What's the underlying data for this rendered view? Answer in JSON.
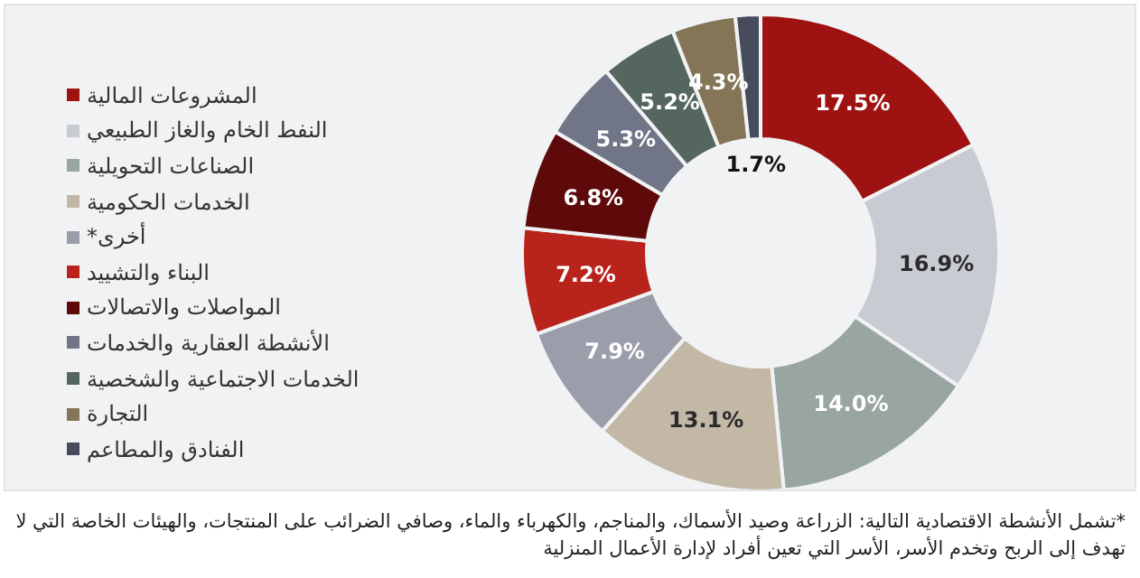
{
  "chart_data": {
    "type": "donut",
    "categories": [
      "المشروعات المالية",
      "النفط الخام والغاز الطبيعي",
      "الصناعات التحويلية",
      "الخدمات الحكومية",
      "أخرى*",
      "البناء والتشييد",
      "المواصلات والاتصالات",
      "الأنشطة العقارية والخدمات",
      "الخدمات الاجتماعية والشخصية",
      "التجارة",
      "الفنادق والمطاعم"
    ],
    "values": [
      17.5,
      16.9,
      14.0,
      13.1,
      7.9,
      7.2,
      6.8,
      5.3,
      5.2,
      4.3,
      1.7
    ],
    "colors": [
      "#9e1312",
      "#c8cbd1",
      "#98a5a1",
      "#c3b8a6",
      "#9b9eaa",
      "#b8241c",
      "#5e0a0a",
      "#707688",
      "#55665f",
      "#857557",
      "#474c5c"
    ],
    "value_labels": [
      "17.5%",
      "16.9%",
      "14.0%",
      "13.1%",
      "7.9%",
      "7.2%",
      "6.8%",
      "5.3%",
      "5.2%",
      "4.3%",
      "1.7%"
    ],
    "legend": "left",
    "annotations": [
      "*تشمل الأنشطة الاقتصادية التالية: الزراعة وصيد الأسماك، والمناجم، والكهرباء والماء، وصافي الضرائب على المنتجات، والهيئات الخاصة التي لا تهدف إلى الربح وتخدم الأسر، الأسر التي تعين أفراد لإدارة الأعمال المنزلية"
    ]
  }
}
